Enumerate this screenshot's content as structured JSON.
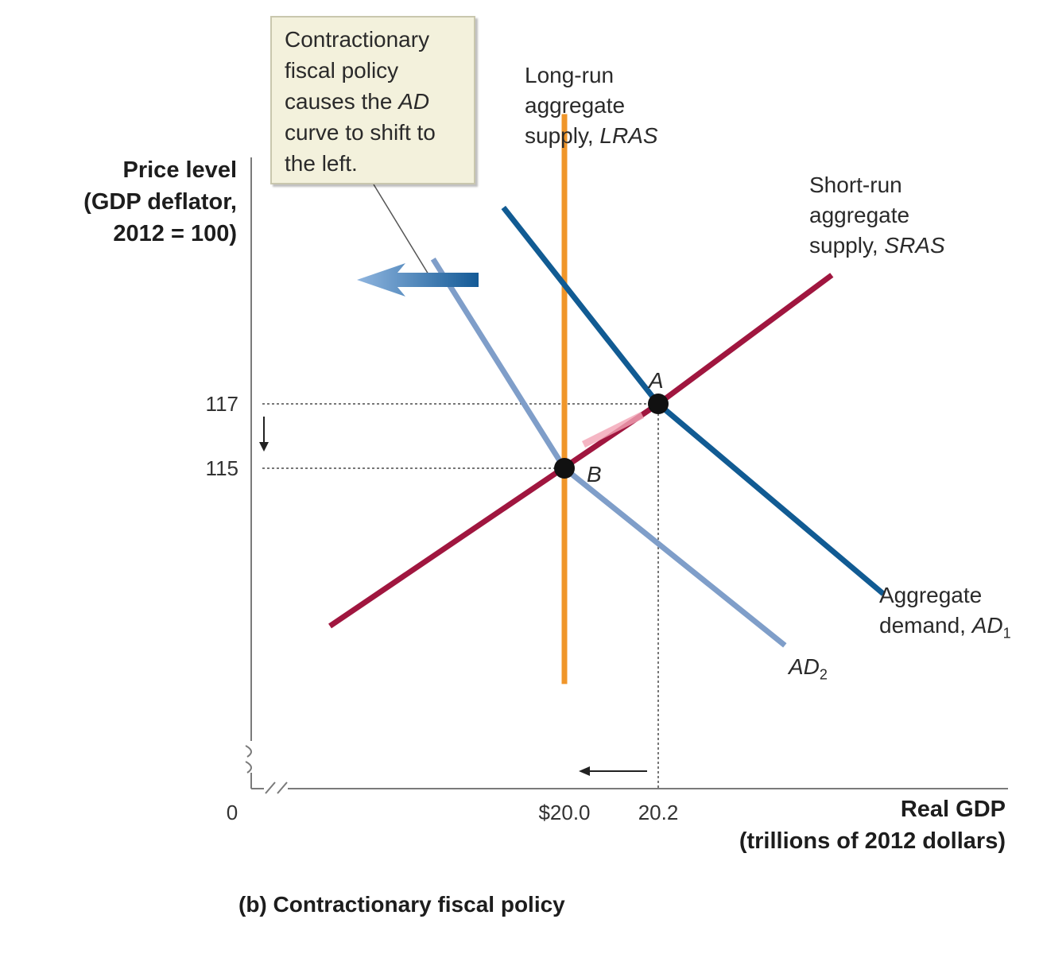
{
  "caption": "(b) Contractionary fiscal policy",
  "callout": {
    "lines": [
      {
        "text": "Contractionary"
      },
      {
        "text": "fiscal policy"
      },
      {
        "pre": "causes the ",
        "em": "AD"
      },
      {
        "text": "curve to shift to"
      },
      {
        "text": "the left."
      }
    ]
  },
  "curve_labels": {
    "lras": {
      "line1": "Long-run",
      "line2": "aggregate",
      "line3_pre": "supply, ",
      "line3_em": "LRAS"
    },
    "sras": {
      "line1": "Short-run",
      "line2": "aggregate",
      "line3_pre": "supply, ",
      "line3_em": "SRAS"
    },
    "ad1": {
      "line1": "Aggregate",
      "line2_pre": "demand, ",
      "line2_em": "AD",
      "line2_sub": "1"
    },
    "ad2": {
      "em": "AD",
      "sub": "2"
    }
  },
  "points": {
    "a": "A",
    "b": "B"
  },
  "colors": {
    "lras": "#f0962a",
    "sras": "#a0163f",
    "ad1": "#115b93",
    "ad2": "#7f9ec9",
    "callout_bg": "#f3f1dc",
    "arrow": "#1f6aa8"
  },
  "chart_data": {
    "type": "line",
    "title": "(b) Contractionary fiscal policy",
    "xlabel": "Real GDP (trillions of 2012 dollars)",
    "ylabel": "Price level (GDP deflator, 2012 = 100)",
    "origin_label": "0",
    "x_tick_labels": [
      {
        "value": 20.0,
        "label": "$20.0"
      },
      {
        "value": 20.2,
        "label": "20.2"
      }
    ],
    "y_tick_labels": [
      {
        "value": 115,
        "label": "115"
      },
      {
        "value": 117,
        "label": "117"
      }
    ],
    "series": [
      {
        "name": "LRAS",
        "x": [
          20.0,
          20.0
        ],
        "y": [
          108.3,
          126.0
        ]
      },
      {
        "name": "SRAS",
        "x": [
          19.5,
          20.2,
          20.57
        ],
        "y": [
          110.1,
          117.0,
          121.0
        ]
      },
      {
        "name": "AD1",
        "x": [
          19.87,
          20.2,
          20.68
        ],
        "y": [
          123.1,
          117.0,
          111.1
        ]
      },
      {
        "name": "AD2",
        "x": [
          19.72,
          20.0,
          20.47
        ],
        "y": [
          121.5,
          115.0,
          109.5
        ]
      }
    ],
    "equilibria": [
      {
        "name": "A",
        "x": 20.2,
        "y": 117
      },
      {
        "name": "B",
        "x": 20.0,
        "y": 115
      }
    ],
    "axis_breaks": [
      "x",
      "y"
    ]
  }
}
